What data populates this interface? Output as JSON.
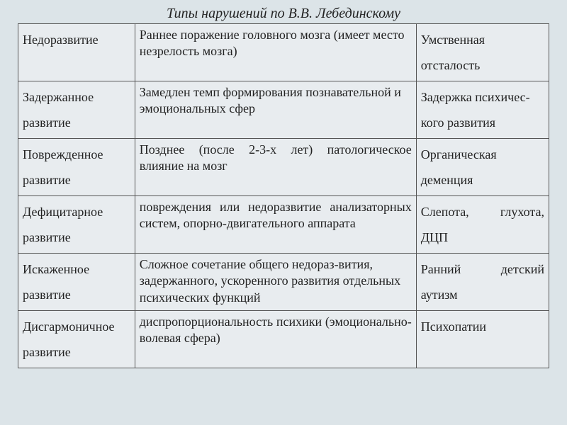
{
  "title": "Типы нарушений по В.В. Лебединскому",
  "table": {
    "background_color": "#e8ecef",
    "page_background": "#dce4e8",
    "border_color": "#555",
    "title_fontsize": 20,
    "cell_fontsize": 18,
    "column_widths": [
      "22%",
      "53%",
      "25%"
    ],
    "rows": [
      {
        "type": "Недоразвитие",
        "description": "Раннее поражение головного мозга (имеет место незрелость мозга)",
        "example": "Умственная отсталость",
        "col2_justify": false,
        "col3_justify": false
      },
      {
        "type": "Задержанное развитие",
        "description": "Замедлен темп формирования познавательной и эмоциональных сфер",
        "example": "Задержка психичес-кого развития",
        "col2_justify": false,
        "col3_justify": false
      },
      {
        "type": "Поврежденное развитие",
        "description": "Позднее (после 2-3-х лет) патологическое влияние на мозг",
        "example": "Органическая деменция",
        "col2_justify": true,
        "col3_justify": false
      },
      {
        "type": "Дефицитарное развитие",
        "description": "повреждения или недоразвитие анализаторных систем, опорно-двигательного аппарата",
        "example": "Слепота, глухота, ДЦП",
        "col2_justify": true,
        "col3_justify": true
      },
      {
        "type": "Искаженное развитие",
        "description": "Сложное сочетание общего недораз-вития, задержанного, ускоренного развития отдельных психических функций",
        "example": "Ранний детский аутизм",
        "col2_justify": false,
        "col3_justify": true
      },
      {
        "type": "Дисгармоничное развитие",
        "description": "диспропорциональность психики (эмоционально-волевая сфера)",
        "example": "Психопатии",
        "col2_justify": true,
        "col3_justify": false
      }
    ]
  }
}
